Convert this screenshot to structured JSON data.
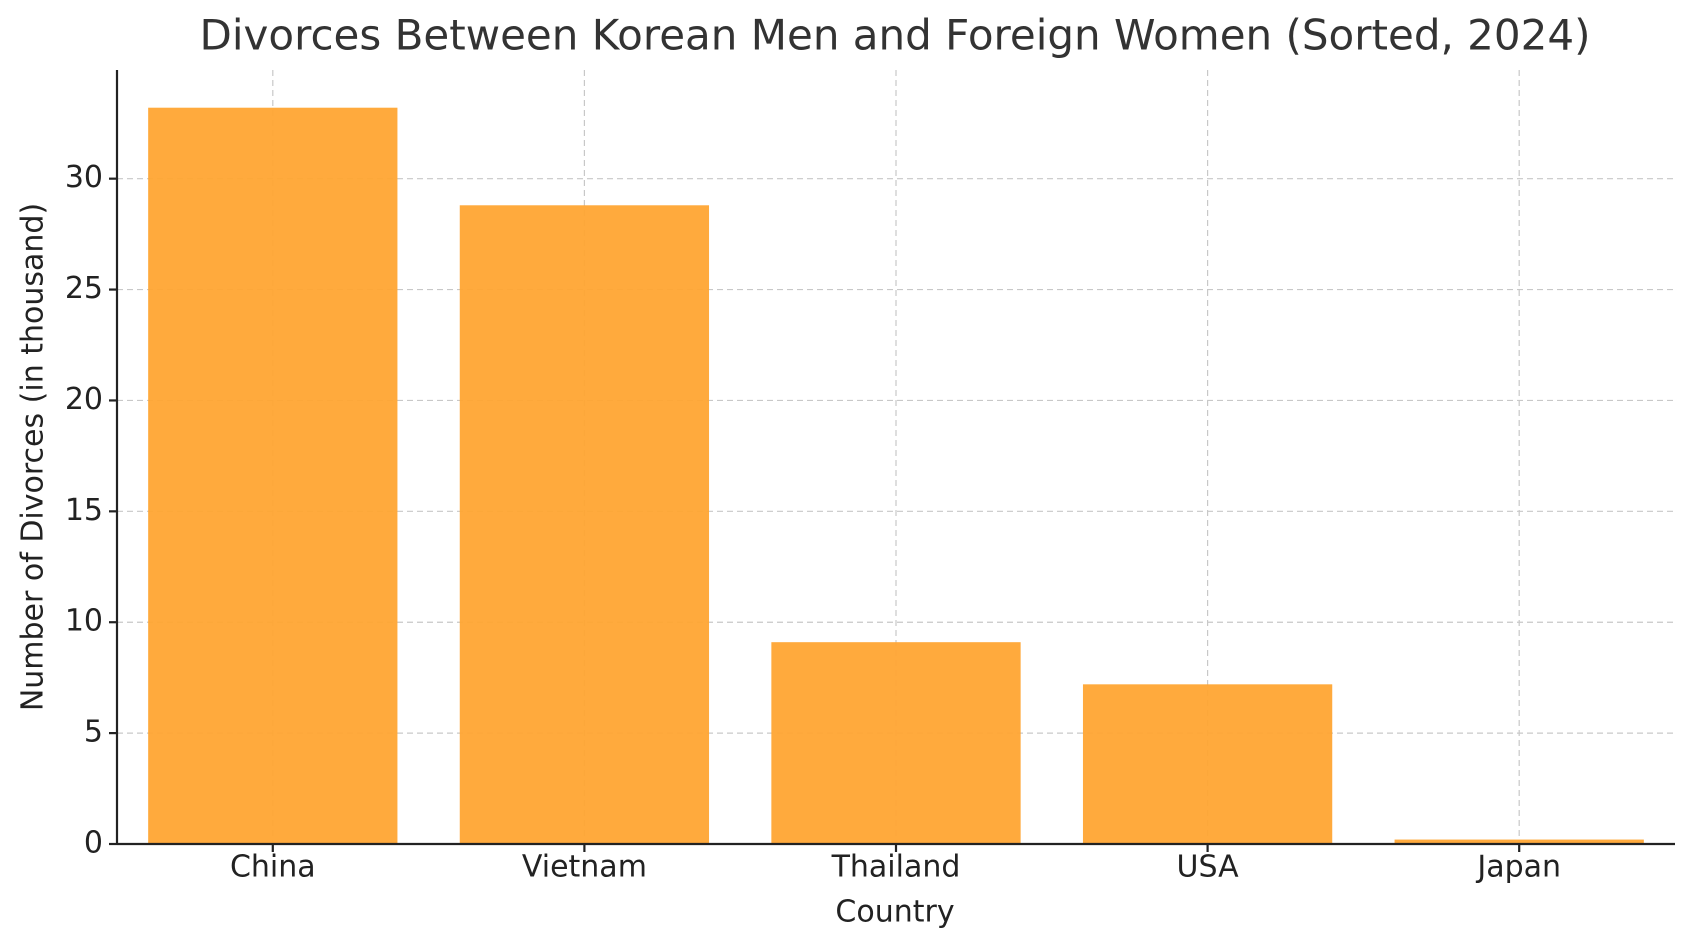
{
  "chart_data": {
    "type": "bar",
    "title": "Divorces Between Korean Men and Foreign Women (Sorted, 2024)",
    "x_label": "Country",
    "y_label": "Number of Divorces (in thousand)",
    "categories": [
      "China",
      "Vietnam",
      "Thailand",
      "USA",
      "Japan"
    ],
    "values": [
      33.2,
      28.8,
      9.1,
      7.2,
      0.2
    ],
    "color": "#ffa533",
    "ylim": [
      0,
      34.9
    ],
    "yticks": [
      0,
      5,
      10,
      15,
      20,
      25,
      30
    ],
    "grid": true
  }
}
